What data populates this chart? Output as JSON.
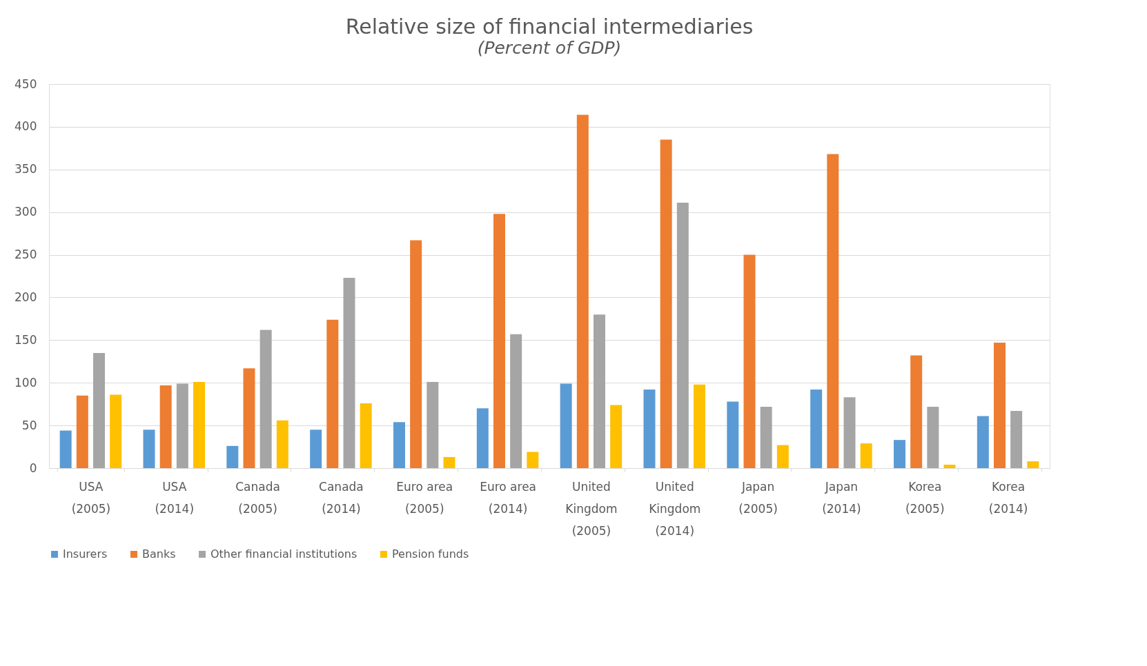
{
  "chart_data": {
    "type": "bar",
    "title": "Relative size of financial intermediaries",
    "subtitle": "(Percent of GDP)",
    "categories": [
      "USA (2005)",
      "USA (2014)",
      "Canada (2005)",
      "Canada (2014)",
      "Euro area (2005)",
      "Euro area (2014)",
      "United Kingdom (2005)",
      "United Kingdom (2014)",
      "Japan (2005)",
      "Japan (2014)",
      "Korea (2005)",
      "Korea (2014)"
    ],
    "series": [
      {
        "name": "Insurers",
        "color": "#5b9bd5",
        "values": [
          44,
          45,
          26,
          45,
          54,
          70,
          99,
          92,
          78,
          92,
          33,
          61
        ]
      },
      {
        "name": "Banks",
        "color": "#ed7d31",
        "values": [
          85,
          97,
          117,
          174,
          267,
          298,
          414,
          385,
          250,
          368,
          132,
          147
        ]
      },
      {
        "name": "Other financial institutions",
        "color": "#a5a5a5",
        "values": [
          135,
          99,
          162,
          223,
          101,
          157,
          180,
          311,
          72,
          83,
          72,
          67
        ]
      },
      {
        "name": "Pension funds",
        "color": "#ffc000",
        "values": [
          86,
          101,
          56,
          76,
          13,
          19,
          74,
          98,
          27,
          29,
          4,
          8
        ]
      }
    ],
    "ylim": [
      0,
      450
    ],
    "yticks": [
      0,
      50,
      100,
      150,
      200,
      250,
      300,
      350,
      400,
      450
    ],
    "grid": "y",
    "legend": "bottom"
  }
}
